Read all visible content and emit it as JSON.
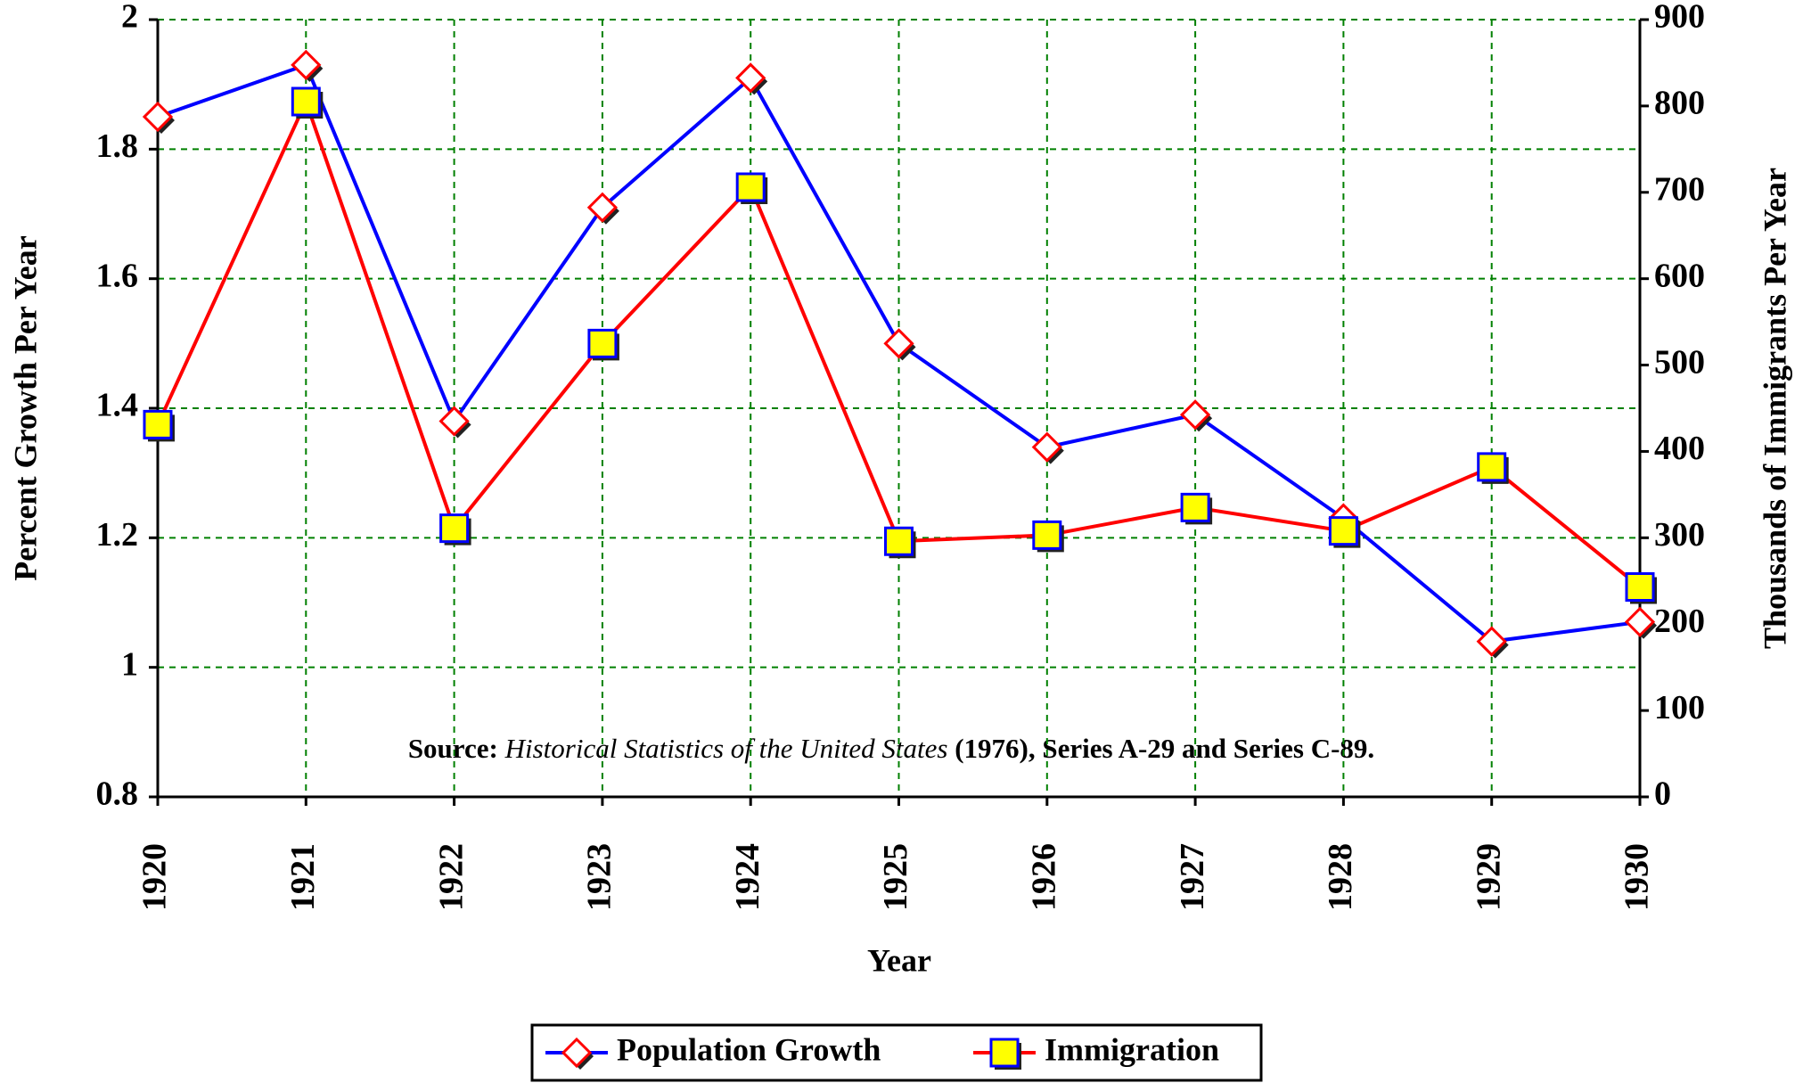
{
  "chart_data": {
    "type": "line",
    "categories": [
      "1920",
      "1921",
      "1922",
      "1923",
      "1924",
      "1925",
      "1926",
      "1927",
      "1928",
      "1929",
      "1930"
    ],
    "series": [
      {
        "name": "Population Growth",
        "color": "#0000ff",
        "marker": "diamond",
        "marker_fill": "#ffffff",
        "marker_edge": "#ff0000",
        "values": [
          1.85,
          1.93,
          1.38,
          1.71,
          1.91,
          1.5,
          1.34,
          1.39,
          1.23,
          1.04,
          1.07
        ]
      },
      {
        "name": "Immigration",
        "color": "#ff0000",
        "marker": "square",
        "marker_fill": "#ffff00",
        "marker_edge": "#0000ff",
        "axis": "y2",
        "values": [
          431,
          805,
          311,
          525,
          706,
          296,
          303,
          335,
          308,
          382,
          243
        ]
      }
    ],
    "xlabel": "Year",
    "ylabel": "Percent Growth Per Year",
    "y2label": "Thousands of Immigrants Per Year",
    "ylim": [
      0.8,
      2
    ],
    "yticks": [
      0.8,
      1,
      1.2,
      1.4,
      1.6,
      1.8,
      2
    ],
    "y2lim": [
      0,
      900
    ],
    "y2ticks": [
      0,
      100,
      200,
      300,
      400,
      500,
      600,
      700,
      800,
      900
    ],
    "annotation": [
      "Source:",
      "Historical Statistics of the United States",
      "(1976), Series A-29 and Series C-89."
    ],
    "grid": true,
    "grid_color": "#008000",
    "legend": "bottom"
  }
}
